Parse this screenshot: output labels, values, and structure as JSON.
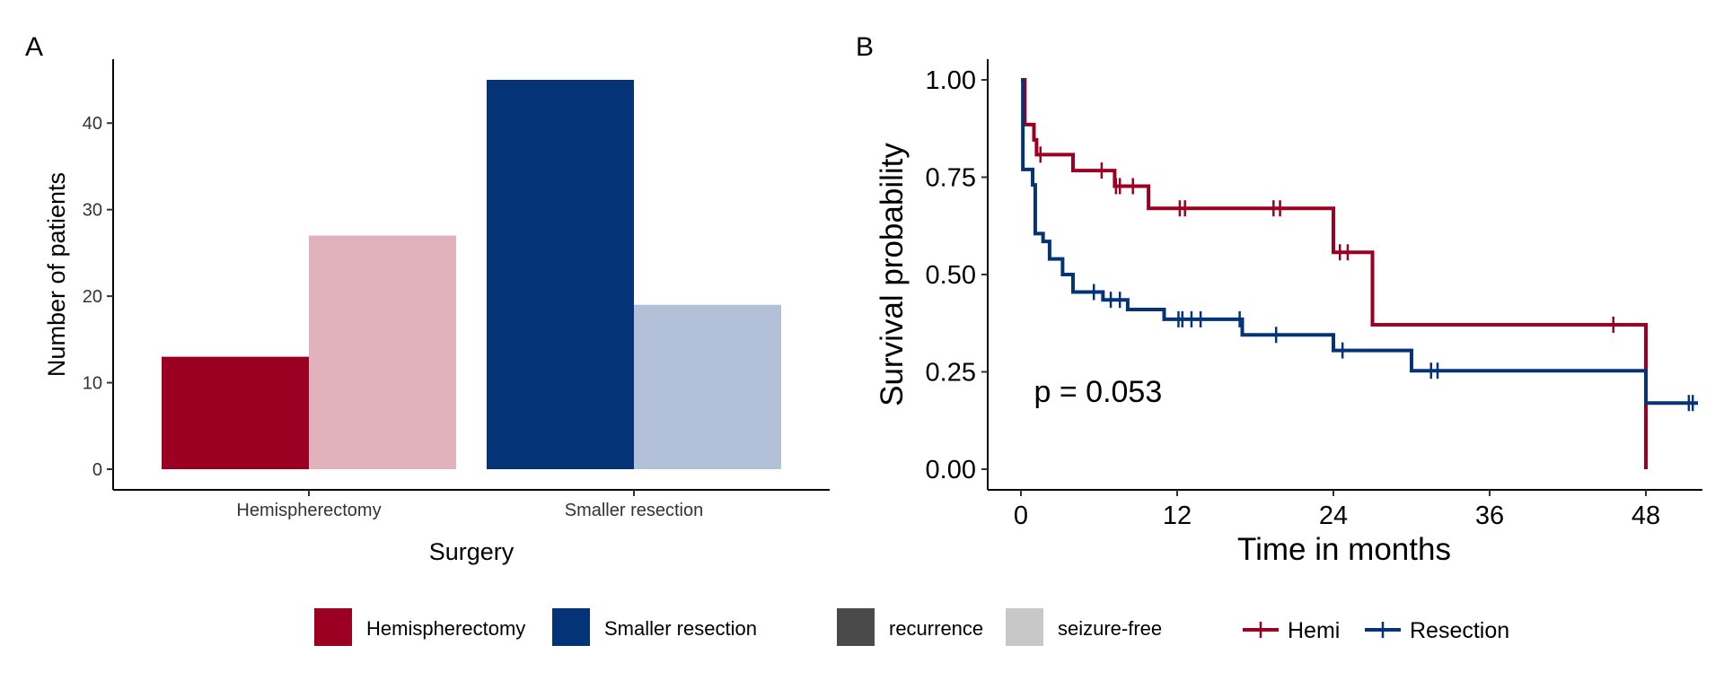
{
  "colors": {
    "hemi": "#9b0023",
    "hemi_light": "#e1b2bb",
    "resection": "#053378",
    "resection_light": "#b2c1d8",
    "recurrence": "#4a4a4a",
    "seizure_free": "#c8c8c8",
    "axis": "#000000",
    "tick_text": "#333333"
  },
  "chart_data": [
    {
      "panel_label": "A",
      "type": "bar",
      "xlabel": "Surgery",
      "ylabel": "Number of patients",
      "categories": [
        "Hemispherectomy",
        "Smaller resection"
      ],
      "series": [
        {
          "name": "recurrence",
          "values": [
            13,
            45
          ]
        },
        {
          "name": "seizure-free",
          "values": [
            27,
            19
          ]
        }
      ],
      "ylim": [
        0,
        47
      ],
      "yticks": [
        0,
        10,
        20,
        30,
        40
      ],
      "ytick_labels": [
        "0",
        "10",
        "20",
        "30",
        "40"
      ],
      "grid": false
    },
    {
      "panel_label": "B",
      "type": "line",
      "subtype": "kaplan-meier step",
      "xlabel": "Time in months",
      "ylabel": "Survival probability",
      "xlim": [
        -2,
        52
      ],
      "ylim": [
        0,
        1
      ],
      "xticks": [
        0,
        12,
        24,
        36,
        48
      ],
      "xtick_labels": [
        "0",
        "12",
        "24",
        "36",
        "48"
      ],
      "yticks": [
        0,
        0.25,
        0.5,
        0.75,
        1
      ],
      "ytick_labels": [
        "0.00",
        "0.25",
        "0.50",
        "0.75",
        "1.00"
      ],
      "annotation": "p = 0.053",
      "annotation_position": {
        "x": 1,
        "y": 0.2
      },
      "grid": false,
      "series": [
        {
          "name": "Hemi",
          "color": "#9b0023",
          "steps": [
            [
              0,
              1.0
            ],
            [
              0.3,
              0.885
            ],
            [
              1.0,
              0.846
            ],
            [
              1.2,
              0.808
            ],
            [
              4.0,
              0.767
            ],
            [
              7.2,
              0.727
            ],
            [
              9.8,
              0.67
            ],
            [
              24.0,
              0.557
            ],
            [
              27.0,
              0.371
            ],
            [
              48.0,
              0.0
            ]
          ],
          "censored": [
            [
              1.5,
              0.808
            ],
            [
              6.2,
              0.767
            ],
            [
              7.3,
              0.727
            ],
            [
              7.6,
              0.727
            ],
            [
              8.6,
              0.727
            ],
            [
              12.2,
              0.67
            ],
            [
              12.6,
              0.67
            ],
            [
              19.4,
              0.67
            ],
            [
              19.9,
              0.67
            ],
            [
              24.5,
              0.557
            ],
            [
              25.1,
              0.557
            ],
            [
              45.5,
              0.371
            ]
          ]
        },
        {
          "name": "Resection",
          "color": "#053378",
          "steps": [
            [
              0,
              1.0
            ],
            [
              0.15,
              0.77
            ],
            [
              0.9,
              0.73
            ],
            [
              1.1,
              0.605
            ],
            [
              1.7,
              0.585
            ],
            [
              2.2,
              0.54
            ],
            [
              3.2,
              0.5
            ],
            [
              4.0,
              0.455
            ],
            [
              6.3,
              0.435
            ],
            [
              8.2,
              0.41
            ],
            [
              11.0,
              0.385
            ],
            [
              17.0,
              0.345
            ],
            [
              24.0,
              0.305
            ],
            [
              30.0,
              0.253
            ],
            [
              48.0,
              0.17
            ],
            [
              52.0,
              0.17
            ]
          ],
          "censored": [
            [
              5.6,
              0.455
            ],
            [
              6.9,
              0.435
            ],
            [
              7.6,
              0.435
            ],
            [
              12.1,
              0.385
            ],
            [
              12.4,
              0.385
            ],
            [
              13.1,
              0.385
            ],
            [
              13.8,
              0.385
            ],
            [
              16.8,
              0.385
            ],
            [
              19.6,
              0.345
            ],
            [
              24.7,
              0.305
            ],
            [
              31.5,
              0.253
            ],
            [
              32.0,
              0.253
            ],
            [
              51.3,
              0.17
            ],
            [
              51.6,
              0.17
            ]
          ]
        }
      ]
    }
  ],
  "legend": {
    "surgery": [
      {
        "label": "Hemispherectomy",
        "color": "#9b0023"
      },
      {
        "label": "Smaller resection",
        "color": "#053378"
      }
    ],
    "outcome": [
      {
        "label": "recurrence",
        "color": "#4a4a4a"
      },
      {
        "label": "seizure-free",
        "color": "#c8c8c8"
      }
    ],
    "curves": [
      {
        "label": "Hemi",
        "color": "#9b0023"
      },
      {
        "label": "Resection",
        "color": "#053378"
      }
    ]
  }
}
